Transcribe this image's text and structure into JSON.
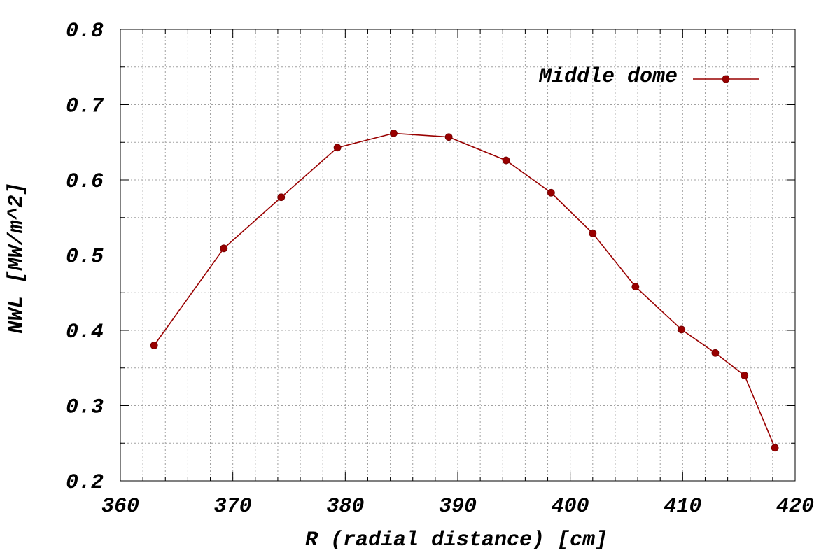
{
  "chart_data": {
    "type": "line",
    "xlabel": "R (radial distance) [cm]",
    "ylabel": "NWL [MW/m^2]",
    "xlim": [
      360,
      420
    ],
    "ylim": [
      0.2,
      0.8
    ],
    "x_ticks": [
      "360",
      "370",
      "380",
      "390",
      "400",
      "410",
      "420"
    ],
    "y_ticks": [
      "0.2",
      "0.3",
      "0.4",
      "0.5",
      "0.6",
      "0.7",
      "0.8"
    ],
    "grid": true,
    "legend_position": "top-right",
    "series": [
      {
        "name": "Middle dome",
        "color": "#990000",
        "marker": "circle",
        "x": [
          363.0,
          369.2,
          374.3,
          379.3,
          384.3,
          389.2,
          394.3,
          398.3,
          402.0,
          405.8,
          409.9,
          412.9,
          415.5,
          418.2
        ],
        "y": [
          0.38,
          0.509,
          0.577,
          0.643,
          0.662,
          0.657,
          0.626,
          0.583,
          0.529,
          0.458,
          0.401,
          0.37,
          0.34,
          0.244
        ]
      }
    ]
  }
}
